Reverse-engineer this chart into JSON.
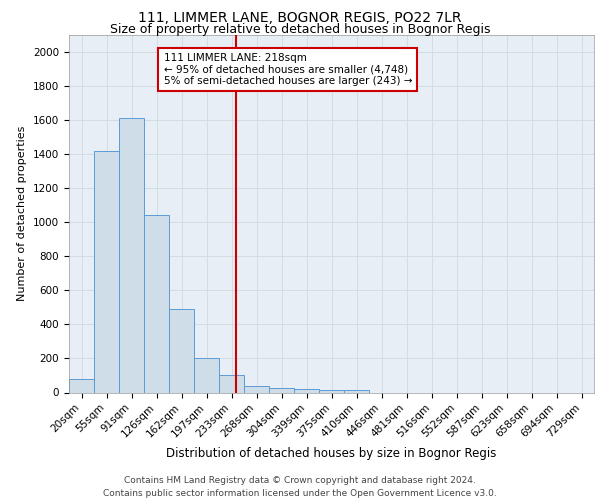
{
  "title1": "111, LIMMER LANE, BOGNOR REGIS, PO22 7LR",
  "title2": "Size of property relative to detached houses in Bognor Regis",
  "xlabel": "Distribution of detached houses by size in Bognor Regis",
  "ylabel": "Number of detached properties",
  "categories": [
    "20sqm",
    "55sqm",
    "91sqm",
    "126sqm",
    "162sqm",
    "197sqm",
    "233sqm",
    "268sqm",
    "304sqm",
    "339sqm",
    "375sqm",
    "410sqm",
    "446sqm",
    "481sqm",
    "516sqm",
    "552sqm",
    "587sqm",
    "623sqm",
    "658sqm",
    "694sqm",
    "729sqm"
  ],
  "values": [
    80,
    1420,
    1610,
    1045,
    490,
    205,
    100,
    40,
    25,
    20,
    15,
    15,
    0,
    0,
    0,
    0,
    0,
    0,
    0,
    0,
    0
  ],
  "bar_color": "#cfdde8",
  "bar_edge_color": "#5b9bd5",
  "annotation_text": "111 LIMMER LANE: 218sqm\n← 95% of detached houses are smaller (4,748)\n5% of semi-detached houses are larger (243) →",
  "annotation_box_color": "#ffffff",
  "annotation_box_edge_color": "#cc0000",
  "vline_x": 6.18,
  "vline_color": "#cc0000",
  "ylim": [
    0,
    2100
  ],
  "yticks": [
    0,
    200,
    400,
    600,
    800,
    1000,
    1200,
    1400,
    1600,
    1800,
    2000
  ],
  "grid_color": "#d0d8e0",
  "background_color": "#e8eef5",
  "footer_text": "Contains HM Land Registry data © Crown copyright and database right 2024.\nContains public sector information licensed under the Open Government Licence v3.0.",
  "title1_fontsize": 10,
  "title2_fontsize": 9,
  "xlabel_fontsize": 8.5,
  "ylabel_fontsize": 8,
  "tick_fontsize": 7.5,
  "annotation_fontsize": 7.5,
  "footer_fontsize": 6.5
}
